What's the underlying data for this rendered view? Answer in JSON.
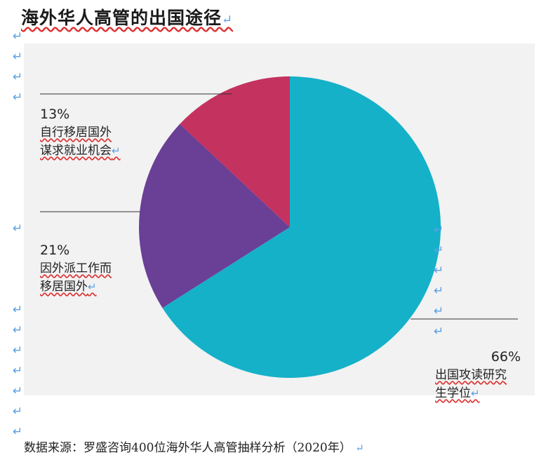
{
  "title": "海外华人高管的出国途径",
  "source": "数据来源：罗盛咨询400位海外华人高管抽样分析（2020年）",
  "colors": {
    "study": "#15b1c9",
    "expat": "#6a3f96",
    "self": "#c4325f",
    "panel": "#f2f2f2"
  },
  "chart_data": {
    "type": "pie",
    "slices": [
      {
        "label_line1": "出国攻读研究",
        "label_line2": "生学位",
        "value": 66,
        "pct_text": "66%"
      },
      {
        "label_line1": "因外派工作而",
        "label_line2": "移居国外",
        "value": 21,
        "pct_text": "21%"
      },
      {
        "label_line1": "自行移居国外",
        "label_line2": "谋求就业机会",
        "value": 13,
        "pct_text": "13%"
      }
    ]
  }
}
